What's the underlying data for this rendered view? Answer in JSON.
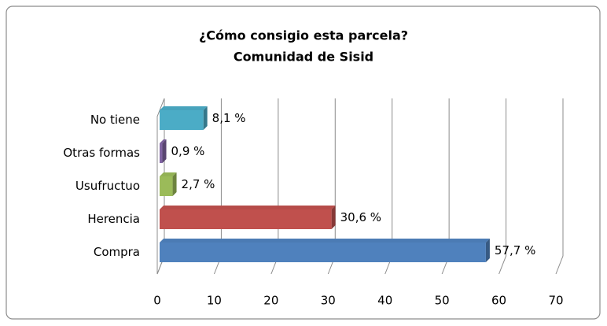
{
  "chart_data": {
    "type": "bar3d_horizontal",
    "title": "¿Cómo consigio esta parcela?",
    "subtitle": "Comunidad de Sisid",
    "categories": [
      "No tiene",
      "Otras formas",
      "Usufructuo",
      "Herencia",
      "Compra"
    ],
    "values": [
      8.1,
      0.9,
      2.7,
      30.6,
      57.7
    ],
    "value_labels": [
      "8,1 %",
      "0,9 %",
      "2,7 %",
      "30,6 %",
      "57,7 %"
    ],
    "colors": [
      "#4bacc6",
      "#8064a2",
      "#9bbb59",
      "#c0504d",
      "#4f81bd"
    ],
    "xlim": [
      0,
      70
    ],
    "xticks": [
      0,
      10,
      20,
      30,
      40,
      50,
      60,
      70
    ],
    "grid": true
  }
}
